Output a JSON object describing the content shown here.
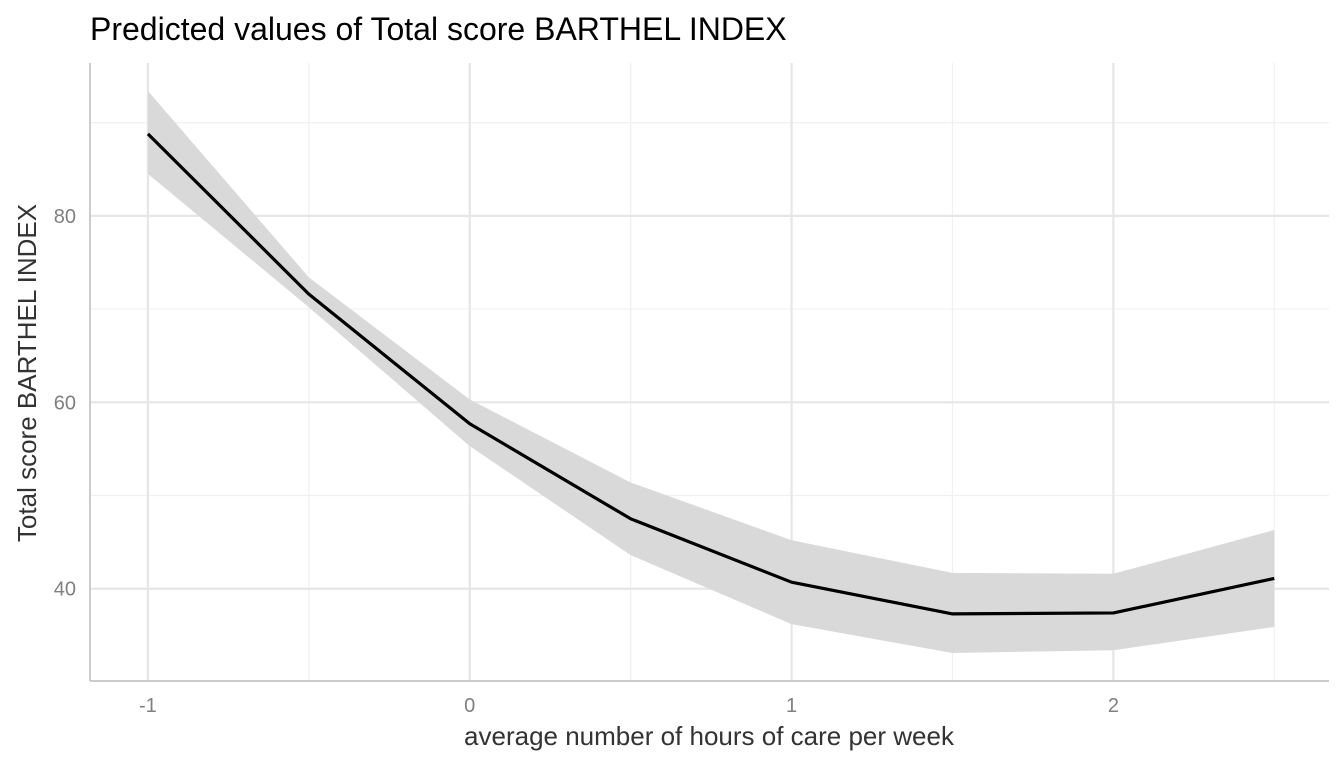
{
  "chart_data": {
    "type": "line",
    "title": "Predicted values of Total score BARTHEL INDEX",
    "xlabel": "average number of hours of care per week",
    "ylabel": "Total score BARTHEL INDEX",
    "x": [
      -1,
      -0.5,
      0,
      0.5,
      1,
      1.5,
      2,
      2.5
    ],
    "series": [
      {
        "values": [
          88.8,
          71.6,
          57.7,
          47.5,
          40.7,
          37.3,
          37.4,
          41.1
        ],
        "ci_low": [
          84.5,
          70.2,
          55.3,
          43.6,
          36.2,
          33.1,
          33.4,
          35.9
        ],
        "ci_high": [
          93.4,
          73.4,
          60.3,
          51.4,
          45.2,
          41.7,
          41.6,
          46.3
        ]
      }
    ],
    "x_ticks": [
      "-1",
      "0",
      "1",
      "2"
    ],
    "y_ticks": [
      "40",
      "60",
      "80"
    ],
    "xlim": [
      -1.18,
      2.67
    ],
    "ylim": [
      30.1,
      96.4
    ],
    "grid": true,
    "legend": "none",
    "colors": {
      "line": "#000000",
      "ribbon": "#d9d9d9",
      "grid": "#e6e6e6",
      "axis": "#cccccc"
    }
  }
}
